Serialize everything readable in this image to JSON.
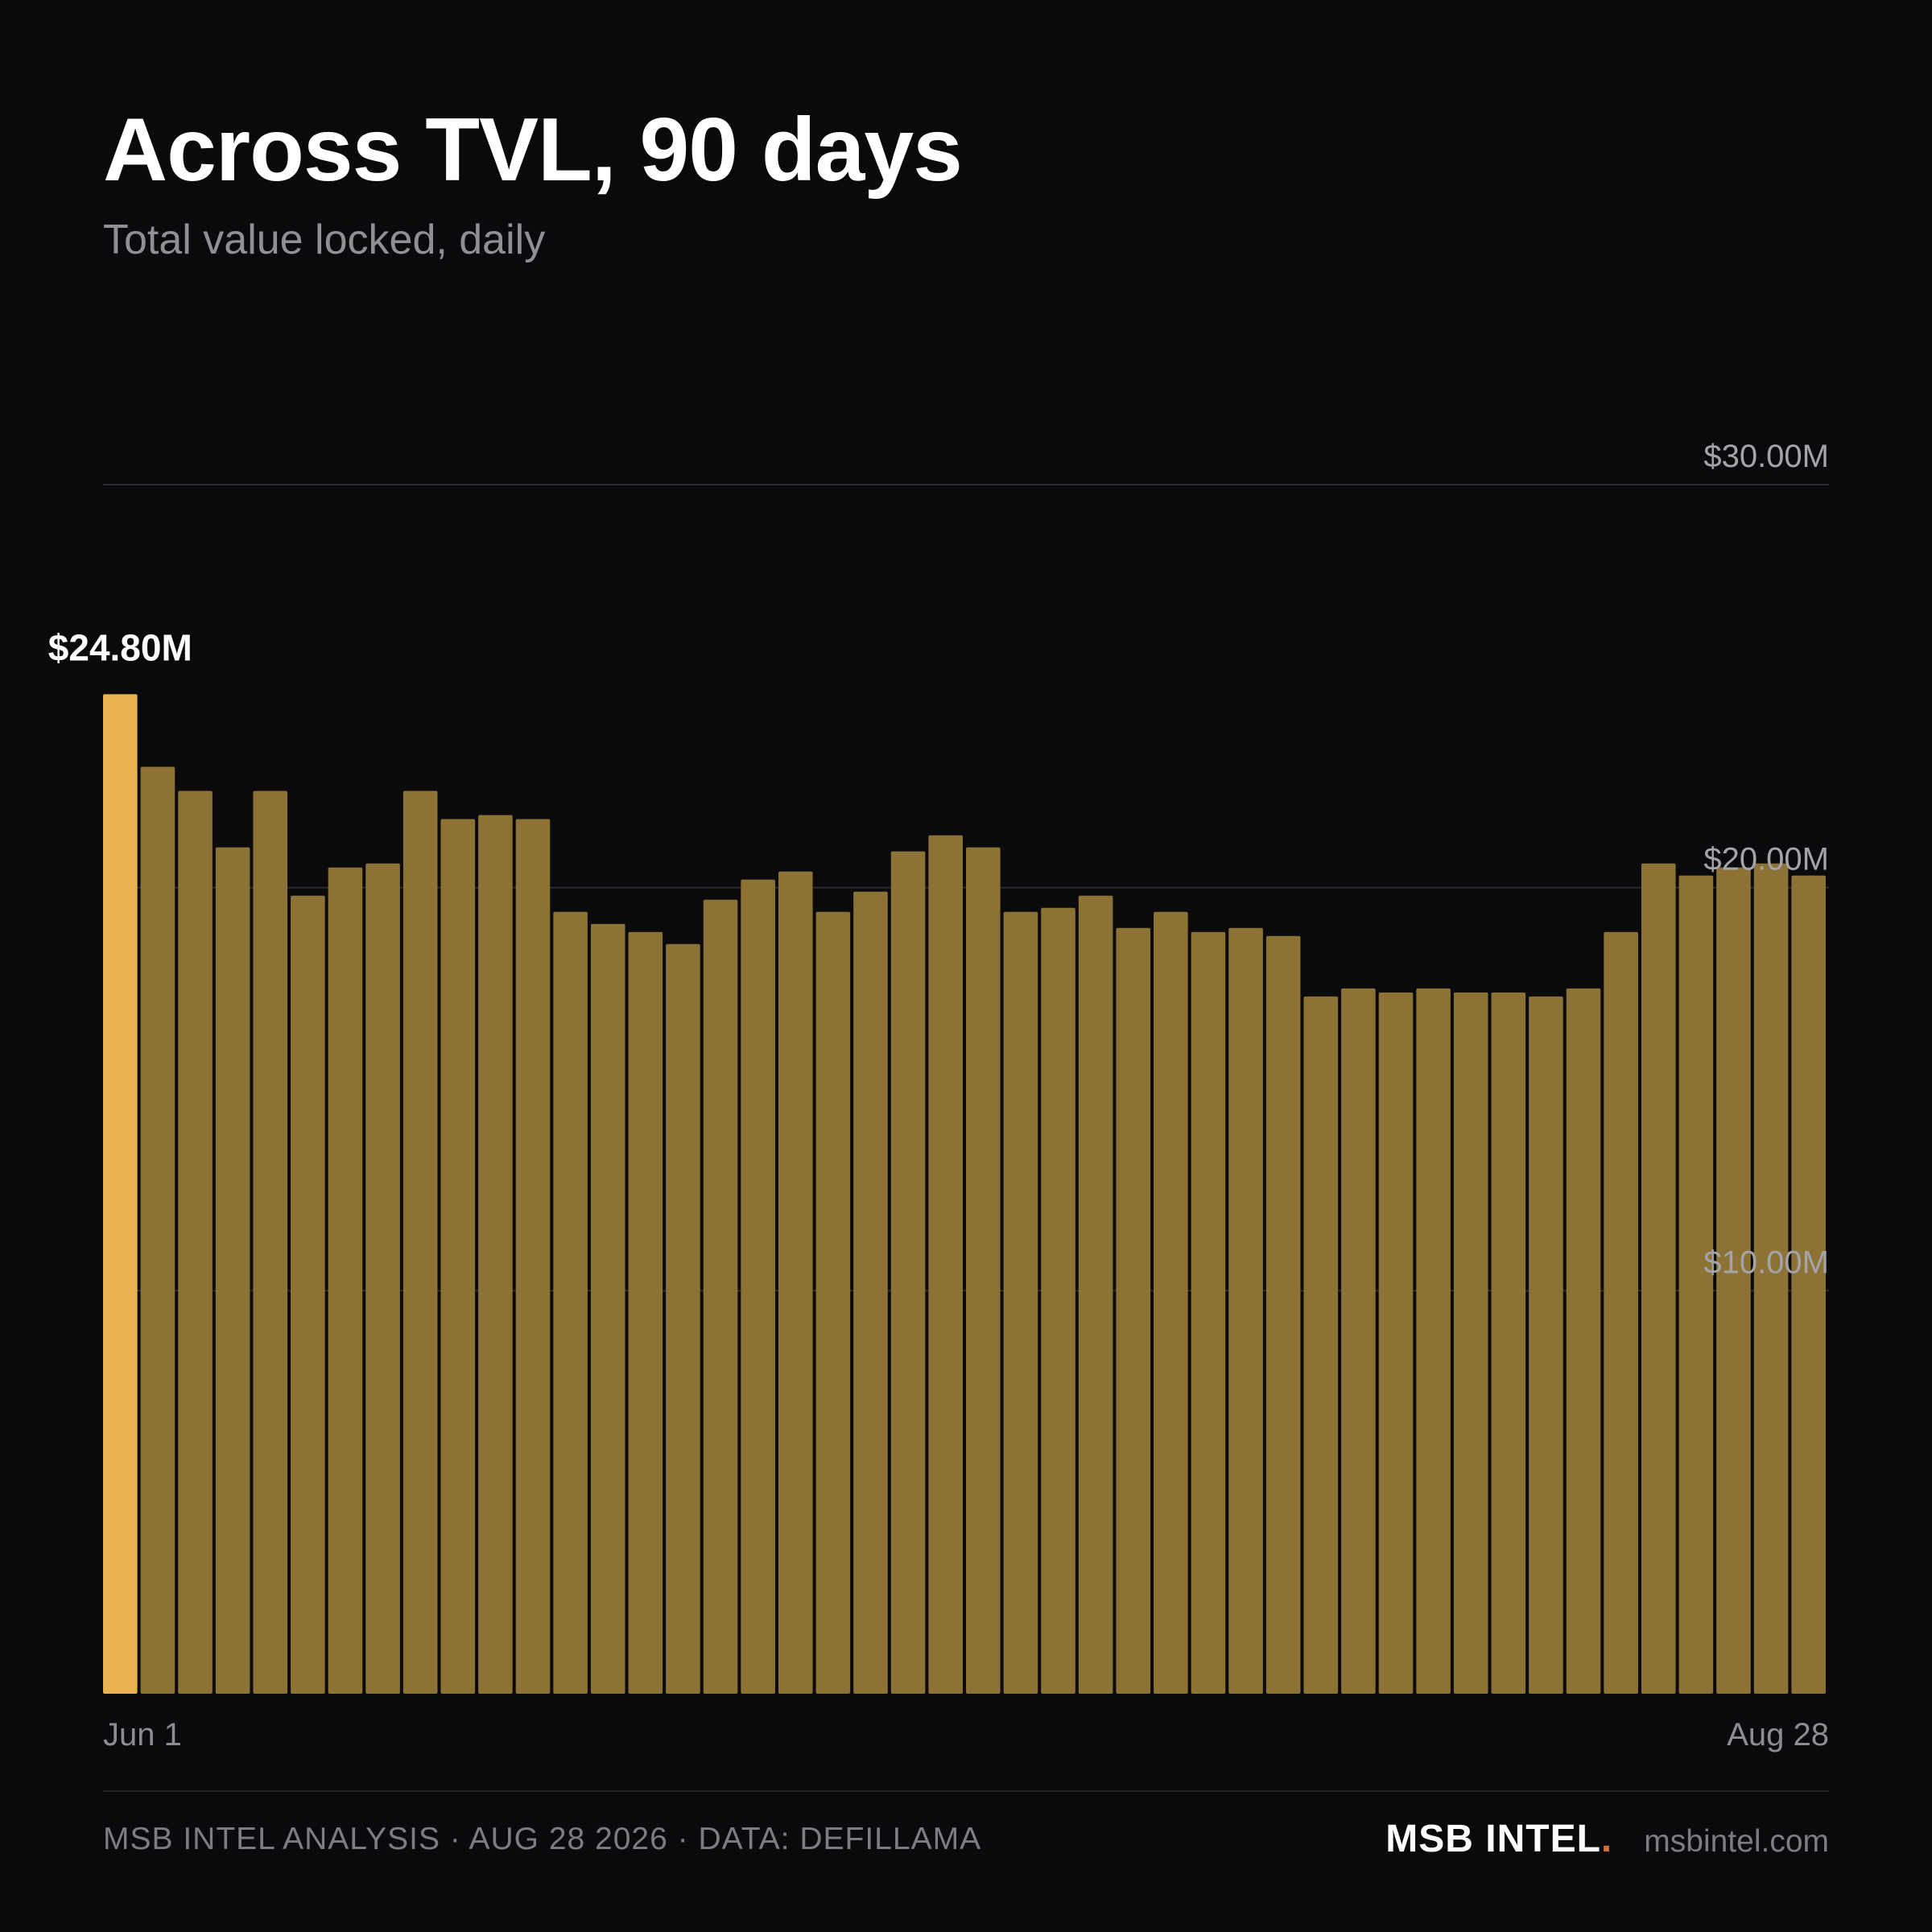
{
  "header": {
    "title": "Across TVL, 90 days",
    "subtitle": "Total value locked, daily"
  },
  "colors": {
    "background": "#0a0a0c",
    "bar": "#8c7234",
    "highlight_bar": "#e8b24f",
    "gridline": "#2c2c30",
    "tick_text": "#a3a4a9",
    "brand_dot": "#d0703c"
  },
  "chart_data": {
    "type": "bar",
    "title": "Across TVL, 90 days",
    "subtitle": "Total value locked, daily",
    "xlabel": "",
    "ylabel": "",
    "x_start": "Jun 1",
    "x_end": "Aug 28",
    "x_tick_labels": [
      "Jun 1",
      "Aug 28"
    ],
    "y_tick_labels": [
      "$10.00M",
      "$20.00M",
      "$30.00M"
    ],
    "y_ticks": [
      10,
      20,
      30
    ],
    "y_unit": "$M",
    "ylim": [
      0,
      30
    ],
    "grid": true,
    "highlight": {
      "index": 0,
      "label": "$24.80M"
    },
    "values": [
      24.8,
      23.0,
      22.4,
      21.0,
      22.4,
      19.8,
      20.5,
      20.6,
      22.4,
      21.7,
      21.8,
      21.7,
      19.4,
      19.1,
      18.9,
      18.6,
      19.7,
      20.2,
      20.4,
      19.4,
      19.9,
      20.9,
      21.3,
      21.0,
      19.4,
      19.5,
      19.8,
      19.0,
      19.4,
      18.9,
      19.0,
      18.8,
      17.3,
      17.5,
      17.4,
      17.5,
      17.4,
      17.4,
      17.3,
      17.5,
      18.9,
      20.6,
      20.3,
      20.5,
      20.6,
      20.3
    ]
  },
  "footer": {
    "credit": "MSB INTEL ANALYSIS · AUG 28 2026 · DATA: DEFILLAMA",
    "brand": "MSB INTEL",
    "brand_dot": ".",
    "url": "msbintel.com"
  }
}
